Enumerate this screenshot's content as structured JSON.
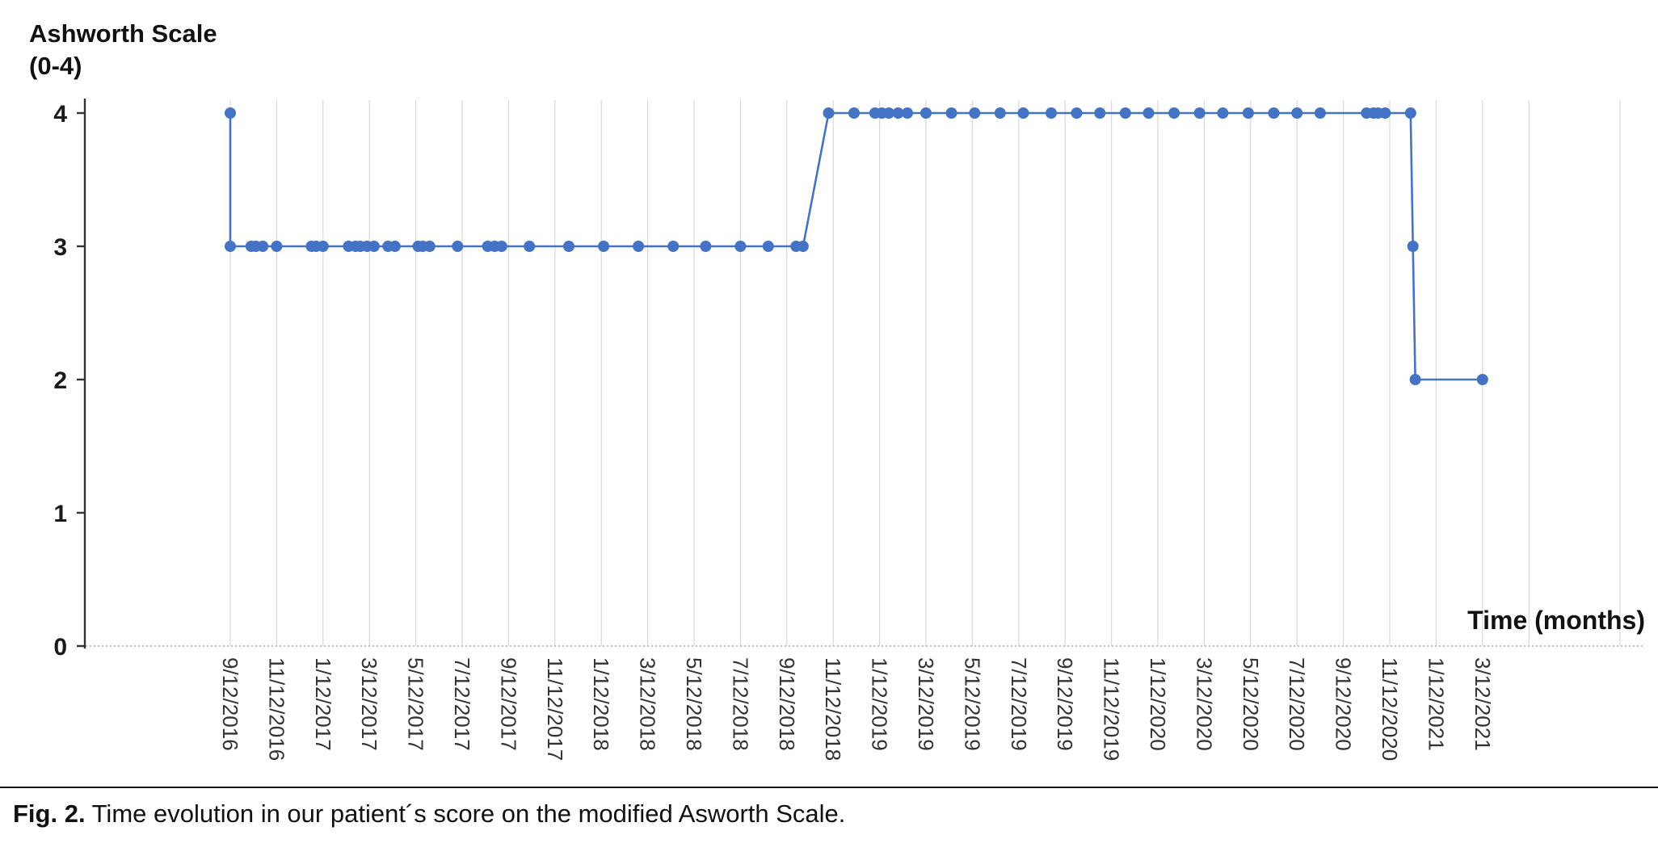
{
  "figure": {
    "caption_label": "Fig. 2.",
    "caption_text": "Time evolution in our patient´s score on the modified Asworth Scale."
  },
  "chart_data": {
    "type": "line",
    "title": "",
    "ylabel": "Ashworth Scale (0-4)",
    "ylabel_lines": [
      "Ashworth Scale",
      "(0-4)"
    ],
    "xlabel": "Time (months)",
    "ylim": [
      0,
      4
    ],
    "yticks": [
      0,
      1,
      2,
      3,
      4
    ],
    "grid": "vertical-only",
    "legend": "none",
    "line_color": "#4472C4",
    "grid_color": "#D9D9D9",
    "axis_color": "#333333",
    "zero_line_style": "dashed",
    "xtick_interval": "2 months",
    "xtick_labels": [
      "9/12/2016",
      "11/12/2016",
      "1/12/2017",
      "3/12/2017",
      "5/12/2017",
      "7/12/2017",
      "9/12/2017",
      "11/12/2017",
      "1/12/2018",
      "3/12/2018",
      "5/12/2018",
      "7/12/2018",
      "9/12/2018",
      "11/12/2018",
      "1/12/2019",
      "3/12/2019",
      "5/12/2019",
      "7/12/2019",
      "9/12/2019",
      "11/12/2019",
      "1/12/2020",
      "3/12/2020",
      "5/12/2020",
      "7/12/2020",
      "9/12/2020",
      "11/12/2020",
      "1/12/2021",
      "3/12/2021"
    ],
    "points_x_unit": "months since 9/12/2016",
    "points": [
      [
        0,
        4
      ],
      [
        0,
        3
      ],
      [
        0.9,
        3
      ],
      [
        1.1,
        3
      ],
      [
        1.4,
        3
      ],
      [
        2,
        3
      ],
      [
        3.5,
        3
      ],
      [
        3.7,
        3
      ],
      [
        4,
        3
      ],
      [
        5.1,
        3
      ],
      [
        5.4,
        3
      ],
      [
        5.6,
        3
      ],
      [
        5.9,
        3
      ],
      [
        6.2,
        3
      ],
      [
        6.8,
        3
      ],
      [
        7.1,
        3
      ],
      [
        8.1,
        3
      ],
      [
        8.3,
        3
      ],
      [
        8.6,
        3
      ],
      [
        9.8,
        3
      ],
      [
        11.1,
        3
      ],
      [
        11.4,
        3
      ],
      [
        11.7,
        3
      ],
      [
        12.9,
        3
      ],
      [
        14.6,
        3
      ],
      [
        16.1,
        3
      ],
      [
        17.6,
        3
      ],
      [
        19.1,
        3
      ],
      [
        20.5,
        3
      ],
      [
        22,
        3
      ],
      [
        23.2,
        3
      ],
      [
        24.4,
        3
      ],
      [
        24.7,
        3
      ],
      [
        25.8,
        4
      ],
      [
        26.9,
        4
      ],
      [
        27.8,
        4
      ],
      [
        28.1,
        4
      ],
      [
        28.4,
        4
      ],
      [
        28.8,
        4
      ],
      [
        29.2,
        4
      ],
      [
        30,
        4
      ],
      [
        31.1,
        4
      ],
      [
        32.1,
        4
      ],
      [
        33.2,
        4
      ],
      [
        34.2,
        4
      ],
      [
        35.4,
        4
      ],
      [
        36.5,
        4
      ],
      [
        37.5,
        4
      ],
      [
        38.6,
        4
      ],
      [
        39.6,
        4
      ],
      [
        40.7,
        4
      ],
      [
        41.8,
        4
      ],
      [
        42.8,
        4
      ],
      [
        43.9,
        4
      ],
      [
        45,
        4
      ],
      [
        46,
        4
      ],
      [
        47,
        4
      ],
      [
        49,
        4
      ],
      [
        49.3,
        4
      ],
      [
        49.5,
        4
      ],
      [
        49.8,
        4
      ],
      [
        50.9,
        4
      ],
      [
        51,
        3
      ],
      [
        51.1,
        2
      ],
      [
        54,
        2
      ]
    ]
  }
}
